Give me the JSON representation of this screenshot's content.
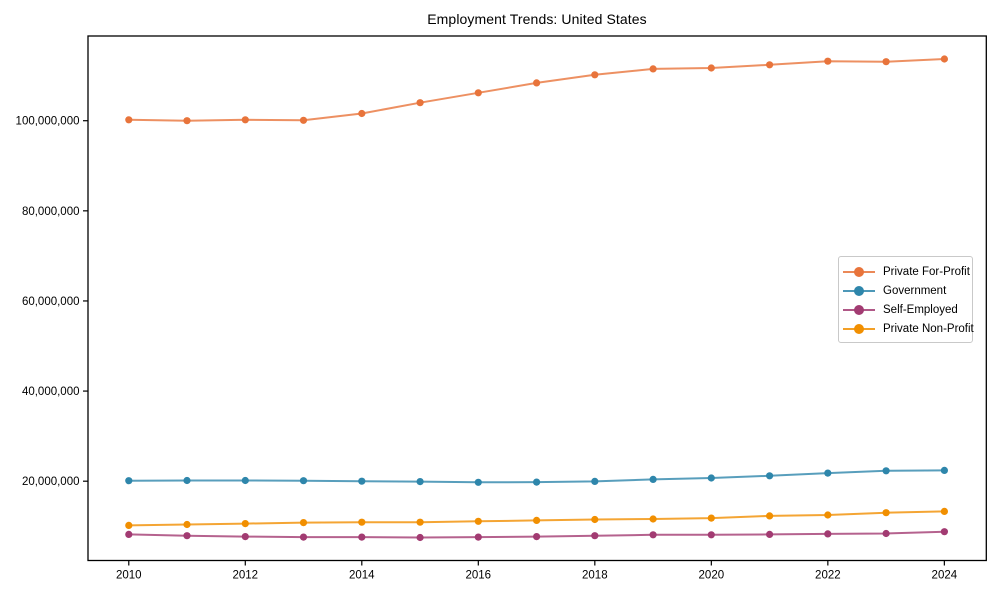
{
  "chart_data": {
    "type": "line",
    "title": "Employment Trends: United States",
    "xlabel": "",
    "ylabel": "",
    "grid": false,
    "legend_position": "center-right",
    "marker": "circle",
    "axis_color": "#000000",
    "tick_label_color": "#000000",
    "x": [
      2010,
      2011,
      2012,
      2013,
      2014,
      2015,
      2016,
      2017,
      2018,
      2019,
      2020,
      2021,
      2022,
      2023,
      2024
    ],
    "series": [
      {
        "name": "Private For-Profit",
        "color": "#E8743B",
        "values": [
          100200000,
          100000000,
          100200000,
          100100000,
          101600000,
          104000000,
          106200000,
          108400000,
          110200000,
          111500000,
          111700000,
          112400000,
          113200000,
          113100000,
          113700000
        ]
      },
      {
        "name": "Government",
        "color": "#2E86AB",
        "values": [
          20100000,
          20150000,
          20150000,
          20100000,
          20000000,
          19900000,
          19750000,
          19800000,
          19950000,
          20400000,
          20700000,
          21200000,
          21800000,
          22300000,
          22400000
        ]
      },
      {
        "name": "Self-Employed",
        "color": "#A23B72",
        "values": [
          8200000,
          7900000,
          7700000,
          7600000,
          7600000,
          7500000,
          7600000,
          7700000,
          7900000,
          8100000,
          8100000,
          8200000,
          8300000,
          8400000,
          8800000
        ]
      },
      {
        "name": "Private Non-Profit",
        "color": "#F18F01",
        "values": [
          10200000,
          10400000,
          10600000,
          10800000,
          10900000,
          10900000,
          11100000,
          11300000,
          11500000,
          11600000,
          11800000,
          12300000,
          12500000,
          13000000,
          13300000
        ]
      }
    ],
    "xlim": [
      2009.3,
      2024.72
    ],
    "ylim": [
      2400000,
      118800000
    ],
    "xticks": {
      "values": [
        2010,
        2012,
        2014,
        2016,
        2018,
        2020,
        2022,
        2024
      ],
      "labels": [
        "2010",
        "2012",
        "2014",
        "2016",
        "2018",
        "2020",
        "2022",
        "2024"
      ]
    },
    "yticks": {
      "values": [
        20000000,
        40000000,
        60000000,
        80000000,
        100000000
      ],
      "labels": [
        "20,000,000",
        "40,000,000",
        "60,000,000",
        "80,000,000",
        "100,000,000"
      ]
    }
  }
}
